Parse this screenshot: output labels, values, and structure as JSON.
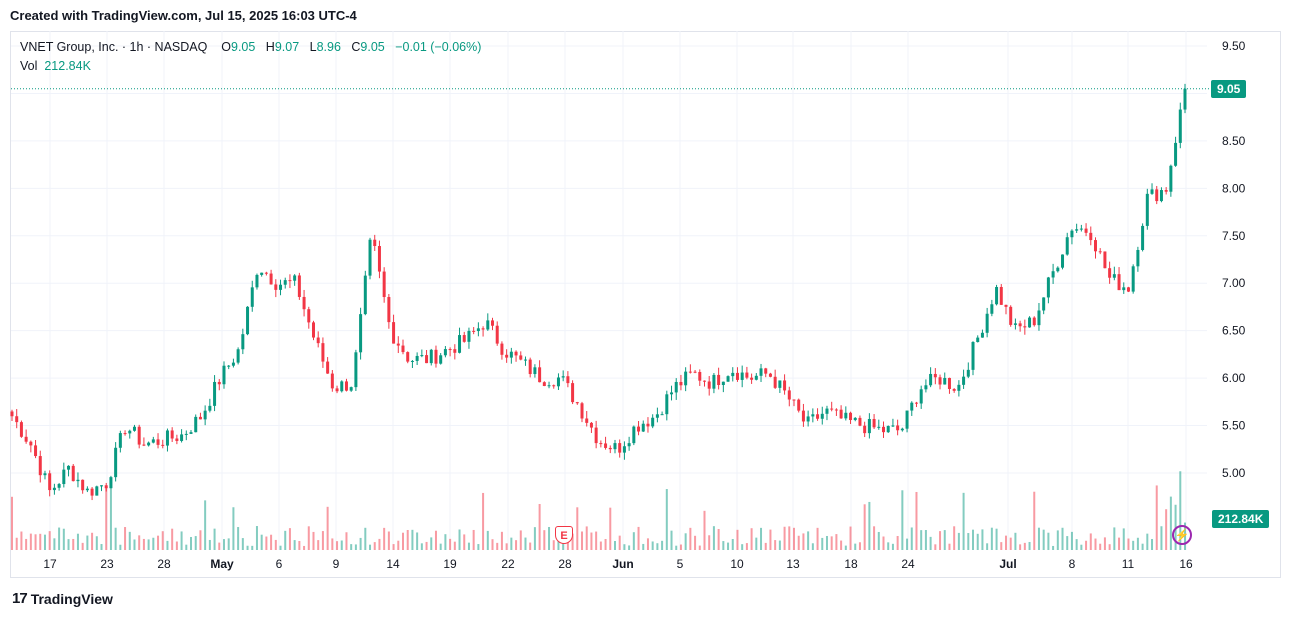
{
  "header": {
    "created_text": "Created with TradingView.com, Jul 15, 2025 16:03 UTC-4"
  },
  "legend": {
    "symbol": "VNET Group, Inc. · 1h · NASDAQ",
    "open_label": "O",
    "open": "9.05",
    "high_label": "H",
    "high": "9.07",
    "low_label": "L",
    "low": "8.96",
    "close_label": "C",
    "close": "9.05",
    "change": "−0.01 (−0.06%)",
    "vol_label": "Vol",
    "vol": "212.84K"
  },
  "last_price_tag": "9.05",
  "volume_tag": "212.84K",
  "earnings_marker": "E",
  "footer": {
    "logo_mark": "17",
    "brand": "TradingView"
  },
  "colors": {
    "up": "#089981",
    "down": "#f23645",
    "up_vol": "#089981",
    "down_vol": "#f23645",
    "grid": "#f0f3fa"
  },
  "chart_data": {
    "type": "candlestick",
    "symbol": "VNET",
    "interval": "1h",
    "y_axis": {
      "ticks": [
        "9.50",
        "9.00",
        "8.50",
        "8.00",
        "7.50",
        "7.00",
        "6.50",
        "6.00",
        "5.50",
        "5.00"
      ],
      "range": [
        4.8,
        9.6
      ]
    },
    "x_axis": {
      "ticks": [
        "17",
        "23",
        "28",
        "May",
        "6",
        "9",
        "14",
        "19",
        "22",
        "28",
        "Jun",
        "5",
        "10",
        "13",
        "18",
        "24",
        "Jul",
        "8",
        "11",
        "16"
      ]
    },
    "close_path": [
      [
        "Apr 15",
        5.6
      ],
      [
        "Apr 16",
        5.3
      ],
      [
        "Apr 17",
        4.8
      ],
      [
        "Apr 18",
        5.05
      ],
      [
        "Apr 21",
        4.8
      ],
      [
        "Apr 22",
        4.9
      ],
      [
        "Apr 23",
        5.5
      ],
      [
        "Apr 24",
        5.3
      ],
      [
        "Apr 25",
        5.35
      ],
      [
        "Apr 28",
        5.4
      ],
      [
        "Apr 29",
        5.6
      ],
      [
        "Apr 30",
        6.0
      ],
      [
        "May 1",
        6.3
      ],
      [
        "May 2",
        7.2
      ],
      [
        "May 5",
        7.0
      ],
      [
        "May 6",
        7.0
      ],
      [
        "May 7",
        6.4
      ],
      [
        "May 8",
        5.9
      ],
      [
        "May 9",
        5.95
      ],
      [
        "May 12",
        7.5
      ],
      [
        "May 13",
        6.5
      ],
      [
        "May 14",
        6.2
      ],
      [
        "May 15",
        6.2
      ],
      [
        "May 16",
        6.3
      ],
      [
        "May 19",
        6.4
      ],
      [
        "May 20",
        6.6
      ],
      [
        "May 21",
        6.3
      ],
      [
        "May 22",
        6.15
      ],
      [
        "May 23",
        6.0
      ],
      [
        "May 27",
        6.0
      ],
      [
        "May 28",
        5.7
      ],
      [
        "May 29",
        5.35
      ],
      [
        "May 30",
        5.25
      ],
      [
        "Jun 2",
        5.5
      ],
      [
        "Jun 3",
        5.6
      ],
      [
        "Jun 4",
        5.9
      ],
      [
        "Jun 5",
        6.05
      ],
      [
        "Jun 6",
        5.95
      ],
      [
        "Jun 9",
        6.1
      ],
      [
        "Jun 10",
        6.0
      ],
      [
        "Jun 11",
        6.05
      ],
      [
        "Jun 12",
        5.8
      ],
      [
        "Jun 13",
        5.5
      ],
      [
        "Jun 16",
        5.65
      ],
      [
        "Jun 17",
        5.55
      ],
      [
        "Jun 18",
        5.5
      ],
      [
        "Jun 20",
        5.45
      ],
      [
        "Jun 23",
        5.45
      ],
      [
        "Jun 24",
        5.9
      ],
      [
        "Jun 25",
        6.0
      ],
      [
        "Jun 26",
        5.9
      ],
      [
        "Jun 27",
        6.4
      ],
      [
        "Jun 30",
        6.95
      ],
      [
        "Jul 1",
        6.5
      ],
      [
        "Jul 2",
        6.6
      ],
      [
        "Jul 3",
        7.1
      ],
      [
        "Jul 7",
        7.6
      ],
      [
        "Jul 8",
        7.55
      ],
      [
        "Jul 9",
        7.05
      ],
      [
        "Jul 10",
        6.95
      ],
      [
        "Jul 11",
        7.9
      ],
      [
        "Jul 14",
        8.0
      ],
      [
        "Jul 15",
        9.05
      ]
    ],
    "volume_tag": "212.84K",
    "last_close": 9.05
  }
}
